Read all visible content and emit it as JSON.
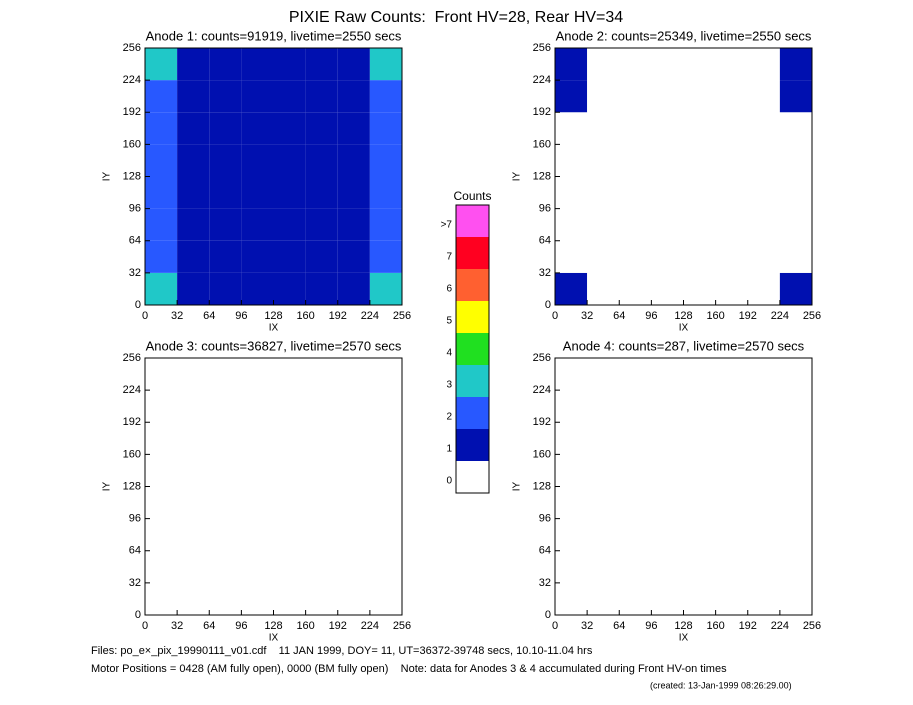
{
  "title": "PIXIE Raw Counts:  Front HV=28, Rear HV=34",
  "chart_data": [
    {
      "type": "heatmap",
      "title": "Anode 1: counts=91919, livetime=2550 secs",
      "xlabel": "IX",
      "ylabel": "IY",
      "xlim": [
        0,
        256
      ],
      "ylim": [
        0,
        256
      ],
      "xticks": [
        0,
        32,
        64,
        96,
        128,
        160,
        192,
        224,
        256
      ],
      "yticks": [
        0,
        32,
        64,
        96,
        128,
        160,
        192,
        224,
        256
      ],
      "xbins": [
        0,
        32,
        64,
        96,
        128,
        160,
        192,
        224,
        256
      ],
      "ybins": [
        0,
        32,
        64,
        96,
        128,
        160,
        192,
        224,
        256
      ],
      "values": [
        [
          3.0,
          1.8,
          1.5,
          1.3,
          1.3,
          1.7,
          1.6,
          3.0
        ],
        [
          2.8,
          1.3,
          1.2,
          1.0,
          1.0,
          1.4,
          1.3,
          2.8
        ],
        [
          2.6,
          1.4,
          1.2,
          1.0,
          1.1,
          1.3,
          1.2,
          2.6
        ],
        [
          2.6,
          1.2,
          1.1,
          1.0,
          1.4,
          1.2,
          1.1,
          2.7
        ],
        [
          2.7,
          1.5,
          1.2,
          1.0,
          1.7,
          1.3,
          1.1,
          2.8
        ],
        [
          2.5,
          1.3,
          1.1,
          1.0,
          1.2,
          1.2,
          1.1,
          2.6
        ],
        [
          2.8,
          1.4,
          1.3,
          1.0,
          1.1,
          1.4,
          1.3,
          2.8
        ],
        [
          3.2,
          1.8,
          1.5,
          1.2,
          1.2,
          1.6,
          1.6,
          3.2
        ]
      ]
    },
    {
      "type": "heatmap",
      "title": "Anode 2: counts=25349, livetime=2550 secs",
      "xlabel": "IX",
      "ylabel": "IY",
      "xlim": [
        0,
        256
      ],
      "ylim": [
        0,
        256
      ],
      "xticks": [
        0,
        32,
        64,
        96,
        128,
        160,
        192,
        224,
        256
      ],
      "yticks": [
        0,
        32,
        64,
        96,
        128,
        160,
        192,
        224,
        256
      ],
      "xbins": [
        0,
        32,
        64,
        96,
        128,
        160,
        192,
        224,
        256
      ],
      "ybins": [
        0,
        32,
        64,
        96,
        128,
        160,
        192,
        224,
        256
      ],
      "values": [
        [
          1.2,
          0.6,
          0.8,
          0.4,
          0.4,
          0.7,
          0.6,
          1.3
        ],
        [
          0.9,
          0.4,
          0.5,
          0.3,
          0.3,
          0.4,
          0.4,
          0.9
        ],
        [
          0.8,
          0.4,
          0.4,
          0.3,
          0.3,
          0.4,
          0.4,
          0.9
        ],
        [
          0.8,
          0.4,
          0.5,
          0.3,
          0.5,
          0.4,
          0.4,
          0.8
        ],
        [
          0.9,
          0.5,
          0.6,
          0.3,
          0.6,
          0.4,
          0.4,
          0.9
        ],
        [
          0.8,
          0.4,
          0.4,
          0.3,
          0.4,
          0.4,
          0.4,
          0.8
        ],
        [
          1.0,
          0.5,
          0.6,
          0.3,
          0.4,
          0.6,
          0.5,
          1.1
        ],
        [
          1.1,
          0.6,
          0.7,
          0.4,
          0.4,
          0.7,
          0.6,
          1.2
        ]
      ]
    },
    {
      "type": "heatmap",
      "title": "Anode 3: counts=36827, livetime=2570 secs",
      "xlabel": "IX",
      "ylabel": "IY",
      "xlim": [
        0,
        256
      ],
      "ylim": [
        0,
        256
      ],
      "xticks": [
        0,
        32,
        64,
        96,
        128,
        160,
        192,
        224,
        256
      ],
      "yticks": [
        0,
        32,
        64,
        96,
        128,
        160,
        192,
        224,
        256
      ],
      "xbins": [
        0,
        32,
        64,
        96,
        128,
        160,
        192,
        224,
        256
      ],
      "ybins": [
        0,
        32,
        64,
        96,
        128,
        160,
        192,
        224,
        256
      ],
      "values": [
        [
          0,
          0,
          0,
          0,
          0,
          0,
          0,
          0.1
        ],
        [
          0,
          0,
          0,
          0,
          0,
          0,
          0,
          0.1
        ],
        [
          0,
          0,
          0,
          0,
          0,
          0,
          0,
          0.1
        ],
        [
          0,
          0,
          0,
          0,
          0,
          0,
          0,
          0.1
        ],
        [
          0,
          0,
          0,
          0,
          0,
          0,
          0,
          0.1
        ],
        [
          0,
          0,
          0,
          0,
          0,
          0,
          0,
          0.1
        ],
        [
          0,
          0,
          0,
          0,
          0,
          0,
          0,
          0.1
        ],
        [
          0,
          0,
          0,
          0,
          0,
          0,
          0,
          0.1
        ]
      ]
    },
    {
      "type": "heatmap",
      "title": "Anode 4: counts=287, livetime=2570 secs",
      "xlabel": "IX",
      "ylabel": "IY",
      "xlim": [
        0,
        256
      ],
      "ylim": [
        0,
        256
      ],
      "xticks": [
        0,
        32,
        64,
        96,
        128,
        160,
        192,
        224,
        256
      ],
      "yticks": [
        0,
        32,
        64,
        96,
        128,
        160,
        192,
        224,
        256
      ],
      "xbins": [
        0,
        32,
        64,
        96,
        128,
        160,
        192,
        224,
        256
      ],
      "ybins": [
        0,
        32,
        64,
        96,
        128,
        160,
        192,
        224,
        256
      ],
      "values": [
        [
          0,
          0,
          0,
          0,
          0,
          0,
          0,
          0
        ],
        [
          0,
          0,
          0,
          0,
          0,
          0,
          0,
          0
        ],
        [
          0,
          0,
          0,
          0,
          0,
          0,
          0,
          0
        ],
        [
          0,
          0,
          0,
          0,
          0,
          0,
          0,
          0
        ],
        [
          0,
          0,
          0,
          0,
          0,
          0,
          0,
          0
        ],
        [
          0.05,
          0.05,
          0.05,
          0.05,
          0.05,
          0.05,
          0.05,
          0.05
        ],
        [
          0,
          0,
          0,
          0,
          0,
          0,
          0,
          0
        ],
        [
          0,
          0,
          0,
          0,
          0,
          0,
          0,
          0
        ]
      ]
    }
  ],
  "colorbar": {
    "title": "Counts",
    "labels": [
      "0",
      "1",
      "2",
      "3",
      "4",
      "5",
      "6",
      "7",
      ">7"
    ],
    "colors": [
      "#ffffff",
      "#0010b0",
      "#2858ff",
      "#20c8c8",
      "#20e020",
      "#ffff00",
      "#ff6030",
      "#ff0020",
      "#ff50f0"
    ]
  },
  "footer": [
    "Files: po_e×_pix_19990111_v01.cdf    11 JAN 1999, DOY= 11, UT=36372-39748 secs, 10.10-11.04 hrs",
    "Motor Positions = 0428 (AM fully open), 0000 (BM fully open)    Note: data for Anodes 3 & 4 accumulated during Front HV-on times",
    "(created: 13-Jan-1999 08:26:29.00)"
  ]
}
